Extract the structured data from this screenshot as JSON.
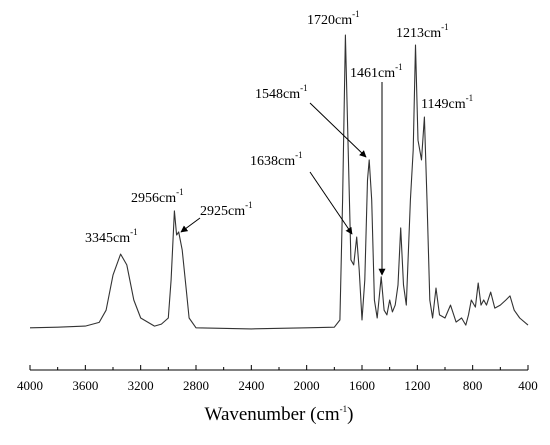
{
  "chart_data": {
    "type": "line",
    "x_label": [
      "Wavenumber (cm",
      "-1",
      ")"
    ],
    "xlim": [
      4000,
      400
    ],
    "xticks": [
      4000,
      3600,
      3200,
      2800,
      2400,
      2000,
      1600,
      1200,
      800,
      400
    ],
    "ylim": [
      0,
      100
    ],
    "color": "#333333",
    "x": [
      4000,
      3800,
      3600,
      3500,
      3450,
      3400,
      3345,
      3300,
      3250,
      3200,
      3100,
      3050,
      3000,
      2980,
      2956,
      2940,
      2925,
      2900,
      2870,
      2850,
      2800,
      2400,
      2000,
      1800,
      1760,
      1740,
      1720,
      1700,
      1680,
      1660,
      1638,
      1620,
      1600,
      1580,
      1560,
      1548,
      1530,
      1510,
      1490,
      1461,
      1440,
      1420,
      1400,
      1380,
      1360,
      1340,
      1320,
      1300,
      1280,
      1250,
      1230,
      1213,
      1195,
      1170,
      1149,
      1130,
      1110,
      1090,
      1065,
      1040,
      1000,
      960,
      920,
      880,
      850,
      830,
      810,
      780,
      760,
      740,
      720,
      700,
      670,
      640,
      600,
      560,
      530,
      500,
      460,
      400
    ],
    "values": [
      12.4,
      12.6,
      12.9,
      14,
      17.6,
      27.9,
      34.1,
      30.9,
      20.6,
      15.3,
      12.9,
      13.5,
      15.3,
      26.5,
      46.8,
      39.7,
      40.6,
      35.3,
      23.5,
      15.3,
      12.4,
      12.1,
      12.4,
      12.6,
      14.7,
      50,
      98.5,
      64.7,
      32.4,
      30.9,
      39.1,
      29.4,
      14.7,
      26.5,
      55.9,
      61.8,
      50,
      20.6,
      15.3,
      27.4,
      17.6,
      16.2,
      20.6,
      17.1,
      19.1,
      25,
      41.8,
      25,
      19.1,
      50,
      64.7,
      95.6,
      67.6,
      61.8,
      74.4,
      50,
      20.6,
      15.3,
      24.1,
      16.2,
      15.3,
      19.1,
      14.1,
      15.3,
      13.2,
      16.2,
      20.6,
      18.5,
      25.6,
      19.1,
      20.6,
      19.1,
      22.9,
      18.2,
      19.1,
      20.6,
      21.8,
      17.6,
      15.3,
      13.2
    ],
    "annotations": [
      {
        "label": "1720cm",
        "superscript": "-1"
      },
      {
        "label": "1213cm",
        "superscript": "-1"
      },
      {
        "label": "1461cm",
        "superscript": "-1"
      },
      {
        "label": "1548cm",
        "superscript": "-1"
      },
      {
        "label": "1149cm",
        "superscript": "-1"
      },
      {
        "label": "1638cm",
        "superscript": "-1"
      },
      {
        "label": "2956cm",
        "superscript": "-1"
      },
      {
        "label": "2925cm",
        "superscript": "-1"
      },
      {
        "label": "3345cm",
        "superscript": "-1"
      }
    ]
  }
}
